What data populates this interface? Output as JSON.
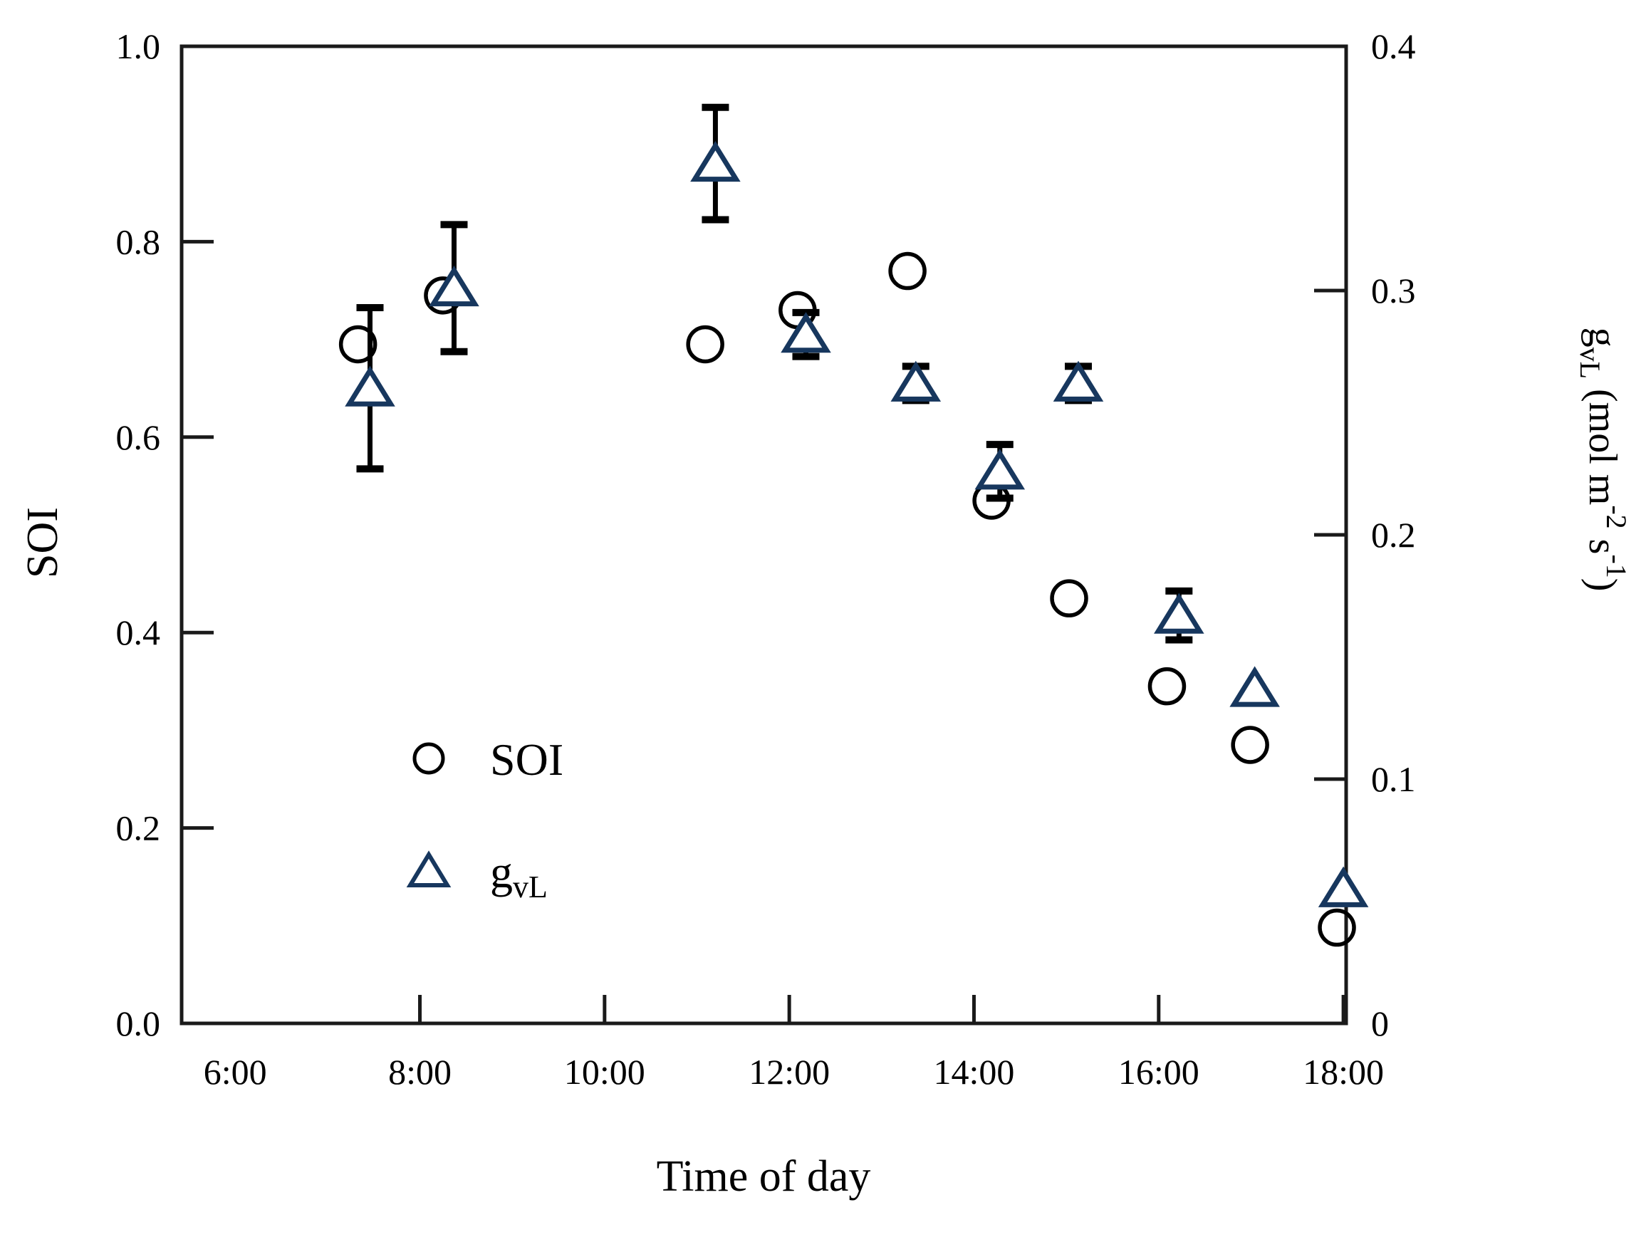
{
  "figure": {
    "background": "#ffffff",
    "frame_color": "#1a1a1a",
    "accent_color": "#17375e"
  },
  "chart_data": {
    "type": "scatter",
    "title": "",
    "xlabel": "Time of day",
    "grid": false,
    "x_axis": {
      "min": 5.42,
      "max": 18.03,
      "ticks": [
        {
          "v": 6,
          "label": "6:00",
          "mark": false
        },
        {
          "v": 8,
          "label": "8:00",
          "mark": true
        },
        {
          "v": 10,
          "label": "10:00",
          "mark": true
        },
        {
          "v": 12,
          "label": "12:00",
          "mark": true
        },
        {
          "v": 14,
          "label": "14:00",
          "mark": true
        },
        {
          "v": 16,
          "label": "16:00",
          "mark": true
        },
        {
          "v": 18,
          "label": "18:00",
          "mark": true
        }
      ]
    },
    "left_axis": {
      "label": "SOI",
      "min": 0,
      "max": 1.0,
      "ticks": [
        {
          "v": 1.0,
          "label": "1.0",
          "mark": false
        },
        {
          "v": 0.8,
          "label": "0.8",
          "mark": true
        },
        {
          "v": 0.6,
          "label": "0.6",
          "mark": true
        },
        {
          "v": 0.4,
          "label": "0.4",
          "mark": true
        },
        {
          "v": 0.2,
          "label": "0.2",
          "mark": true
        },
        {
          "v": 0.0,
          "label": "0.0",
          "mark": false
        }
      ]
    },
    "right_axis": {
      "min": 0,
      "max": 0.4,
      "label_parts": [
        {
          "t": "g"
        },
        {
          "t": "vL",
          "style": "sub"
        },
        {
          "t": " (mol m"
        },
        {
          "t": "-2",
          "style": "sup"
        },
        {
          "t": " s"
        },
        {
          "t": "-1",
          "style": "sup"
        },
        {
          "t": ")"
        }
      ],
      "ticks": [
        {
          "v": 0.4,
          "label": "0.4",
          "mark": false
        },
        {
          "v": 0.3,
          "label": "0.3",
          "mark": true
        },
        {
          "v": 0.2,
          "label": "0.2",
          "mark": true
        },
        {
          "v": 0.1,
          "label": "0.1",
          "mark": true
        },
        {
          "v": 0.0,
          "label": "0",
          "mark": false
        }
      ]
    },
    "series": [
      {
        "name": "SOI",
        "axis": "left",
        "marker": "circle",
        "color": "#000000",
        "points": [
          {
            "x": 7.33,
            "y": 0.695
          },
          {
            "x": 8.25,
            "y": 0.745
          },
          {
            "x": 11.09,
            "y": 0.695
          },
          {
            "x": 12.09,
            "y": 0.73
          },
          {
            "x": 13.28,
            "y": 0.77
          },
          {
            "x": 14.19,
            "y": 0.535
          },
          {
            "x": 15.03,
            "y": 0.435
          },
          {
            "x": 16.09,
            "y": 0.345
          },
          {
            "x": 16.99,
            "y": 0.285
          },
          {
            "x": 17.93,
            "y": 0.098
          }
        ]
      },
      {
        "name": "gvL",
        "axis": "right",
        "marker": "triangle",
        "color": "#17375e",
        "points": [
          {
            "x": 7.46,
            "y": 0.26,
            "err": 0.033
          },
          {
            "x": 8.37,
            "y": 0.301,
            "err": 0.026
          },
          {
            "x": 11.2,
            "y": 0.352,
            "err": 0.023
          },
          {
            "x": 12.18,
            "y": 0.282,
            "err": 0.009
          },
          {
            "x": 13.37,
            "y": 0.262,
            "err": 0.007
          },
          {
            "x": 14.28,
            "y": 0.226,
            "err": 0.011
          },
          {
            "x": 15.13,
            "y": 0.262,
            "err": 0.007
          },
          {
            "x": 16.22,
            "y": 0.167,
            "err": 0.01
          },
          {
            "x": 17.04,
            "y": 0.137,
            "err": 0
          },
          {
            "x": 18.0,
            "y": 0.055,
            "err": 0
          }
        ]
      }
    ],
    "legend": {
      "position": "inside-lower-left",
      "items": [
        {
          "marker": "circle",
          "label_parts": [
            {
              "t": "SOI"
            }
          ]
        },
        {
          "marker": "triangle",
          "label_parts": [
            {
              "t": "g"
            },
            {
              "t": "vL",
              "style": "sub"
            }
          ]
        }
      ]
    }
  }
}
